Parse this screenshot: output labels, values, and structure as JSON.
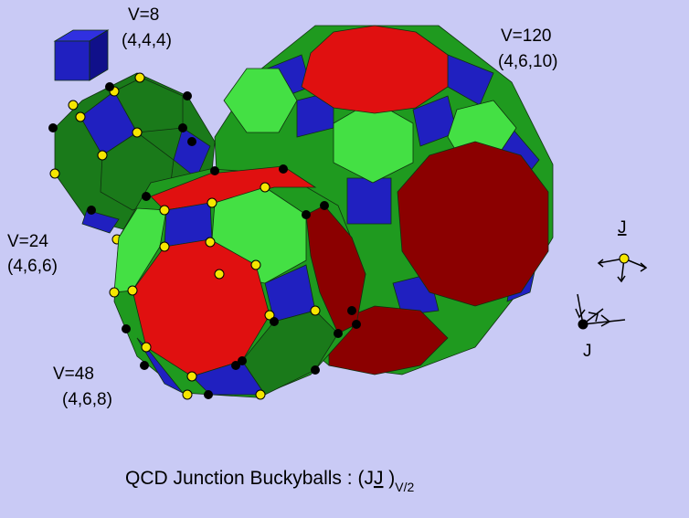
{
  "labels": {
    "v8": {
      "count": "V=8",
      "type": "(4,4,4)"
    },
    "v24": {
      "count": "V=24",
      "type": "(4,6,6)"
    },
    "v48": {
      "count": "V=48",
      "type": "(4,6,8)"
    },
    "v120": {
      "count": "V=120",
      "type": "(4,6,10)"
    }
  },
  "legend": {
    "antijunction": "J",
    "junction": "J"
  },
  "caption": {
    "text": "QCD Junction Buckyballs :",
    "open": "(J",
    "underlined": "J",
    "close": ")",
    "subscript": "V/2"
  }
}
